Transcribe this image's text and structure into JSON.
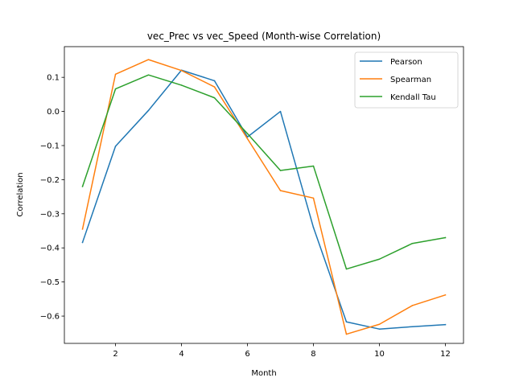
{
  "chart_data": {
    "type": "line",
    "title": "vec_Prec vs vec_Speed (Month-wise Correlation)",
    "xlabel": "Month",
    "ylabel": "Correlation",
    "x": [
      1,
      2,
      3,
      4,
      5,
      6,
      7,
      8,
      9,
      10,
      11,
      12
    ],
    "xticks": [
      2,
      4,
      6,
      8,
      10,
      12
    ],
    "yticks": [
      -0.6,
      -0.5,
      -0.4,
      -0.3,
      -0.2,
      -0.1,
      0.0,
      0.1
    ],
    "xlim": [
      0.45,
      12.55
    ],
    "ylim": [
      -0.68,
      0.19
    ],
    "grid": false,
    "legend_position": "top-right",
    "series": [
      {
        "name": "Pearson",
        "color": "#1f77b4",
        "values": [
          -0.384,
          -0.102,
          0.003,
          0.121,
          0.09,
          -0.075,
          0.0,
          -0.34,
          -0.617,
          -0.638,
          -0.631,
          -0.625
        ]
      },
      {
        "name": "Spearman",
        "color": "#ff7f0e",
        "values": [
          -0.345,
          0.109,
          0.152,
          0.12,
          0.072,
          -0.08,
          -0.232,
          -0.254,
          -0.653,
          -0.624,
          -0.569,
          -0.538
        ]
      },
      {
        "name": "Kendall Tau",
        "color": "#2ca02c",
        "values": [
          -0.22,
          0.066,
          0.107,
          0.077,
          0.04,
          -0.065,
          -0.173,
          -0.16,
          -0.462,
          -0.433,
          -0.387,
          -0.37
        ]
      }
    ]
  }
}
